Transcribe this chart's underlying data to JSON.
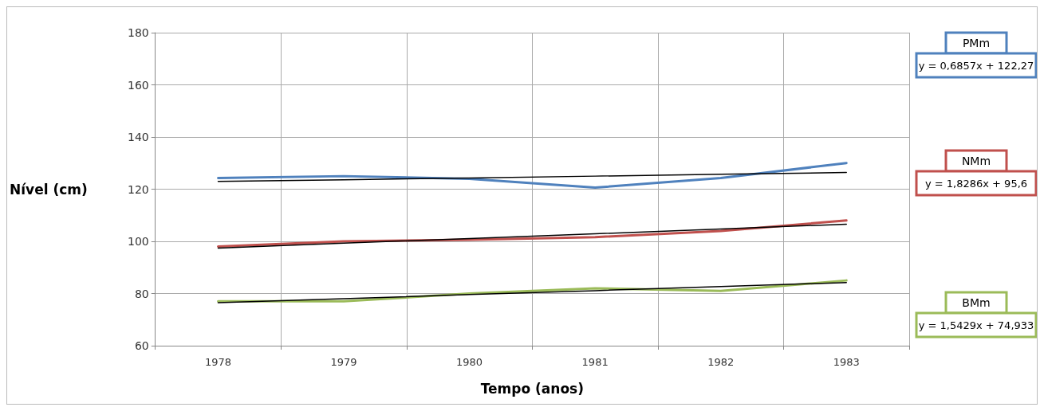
{
  "chart_data": {
    "type": "line",
    "xlabel": "Tempo (anos)",
    "ylabel": "Nível (cm)",
    "categories": [
      "1978",
      "1979",
      "1980",
      "1981",
      "1982",
      "1983"
    ],
    "series": [
      {
        "name": "PMm",
        "color": "#4f81bd",
        "values": [
          124.3,
          125,
          124,
          120.6,
          124.3,
          130
        ]
      },
      {
        "name": "NMm",
        "color": "#c0504d",
        "values": [
          98,
          100,
          100.6,
          101.6,
          104,
          108
        ]
      },
      {
        "name": "BMm",
        "color": "#9bbb59",
        "values": [
          77,
          77,
          80,
          82,
          81,
          85
        ]
      },
      {
        "color": "#000000",
        "values": [
          123,
          123.6,
          124.3,
          125,
          125.7,
          126.4
        ]
      },
      {
        "color": "#000000",
        "values": [
          97.4,
          99.3,
          101.1,
          102.9,
          104.7,
          106.6
        ]
      },
      {
        "color": "#000000",
        "values": [
          76.5,
          78,
          79.6,
          81.1,
          82.7,
          84.2
        ]
      }
    ],
    "annotations": [
      "y = 0,6857x + 122,27",
      "y = 1,8286x + 95,6",
      "y = 1,5429x + 74,933"
    ],
    "ylim": [
      60,
      180
    ],
    "yticks": [
      60,
      80,
      100,
      120,
      140,
      160,
      180
    ],
    "grid": true,
    "legend": "right",
    "marker": "none",
    "line_style": "solid"
  }
}
